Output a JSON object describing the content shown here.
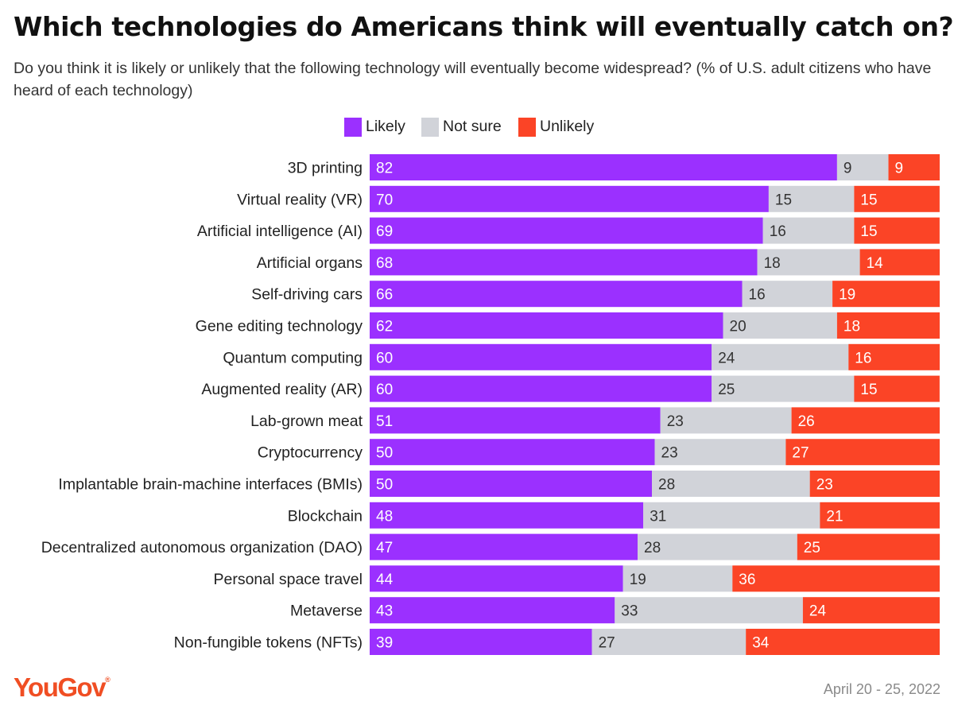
{
  "title": "Which technologies do Americans think will eventually catch on?",
  "subtitle": "Do you think it is likely or unlikely that the following technology will eventually become widespread? (% of U.S. adult citizens who have heard of each technology)",
  "legend": [
    {
      "label": "Likely",
      "color": "#9b30ff"
    },
    {
      "label": "Not sure",
      "color": "#d1d3d9"
    },
    {
      "label": "Unlikely",
      "color": "#fb4426"
    }
  ],
  "source_logo": "YouGov",
  "date": "April 20 - 25, 2022",
  "chart_data": {
    "type": "bar",
    "orientation": "horizontal",
    "stacked": true,
    "categories": [
      "3D printing",
      "Virtual reality (VR)",
      "Artificial intelligence (AI)",
      "Artificial organs",
      "Self-driving cars",
      "Gene editing technology",
      "Quantum computing",
      "Augmented reality (AR)",
      "Lab-grown meat",
      "Cryptocurrency",
      "Implantable brain-machine interfaces (BMIs)",
      "Blockchain",
      "Decentralized autonomous organization (DAO)",
      "Personal space travel",
      "Metaverse",
      "Non-fungible tokens (NFTs)"
    ],
    "series": [
      {
        "name": "Likely",
        "color": "#9b30ff",
        "label_color": "#ffffff",
        "values": [
          82,
          70,
          69,
          68,
          66,
          62,
          60,
          60,
          51,
          50,
          50,
          48,
          47,
          44,
          43,
          39
        ]
      },
      {
        "name": "Not sure",
        "color": "#d1d3d9",
        "label_color": "#333333",
        "values": [
          9,
          15,
          16,
          18,
          16,
          20,
          24,
          25,
          23,
          23,
          28,
          31,
          28,
          19,
          33,
          27
        ]
      },
      {
        "name": "Unlikely",
        "color": "#fb4426",
        "label_color": "#ffffff",
        "values": [
          9,
          15,
          15,
          14,
          19,
          18,
          16,
          15,
          26,
          27,
          23,
          21,
          25,
          36,
          24,
          34
        ]
      }
    ],
    "xlim": [
      0,
      100
    ],
    "grid": false,
    "legend_position": "top-center"
  }
}
